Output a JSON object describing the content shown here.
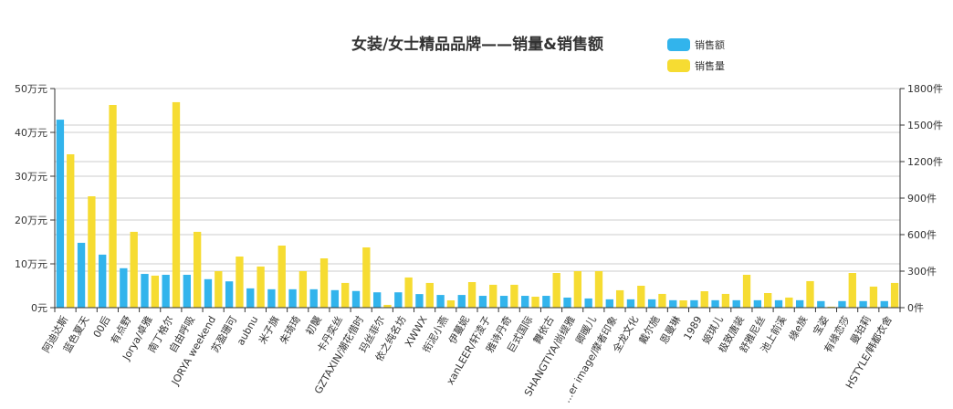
{
  "chart_data": {
    "type": "bar",
    "title": "女装/女士精品品牌——销量&销售额",
    "legend_position": "top-right",
    "grid": true,
    "colors": {
      "sales_amount": "#32b4ec",
      "sales_volume": "#f6dc32",
      "grid": "#cccccc",
      "axis": "#333333",
      "text": "#333333"
    },
    "categories": [
      "阿迪达斯",
      "蓝色夏天",
      "00后",
      "有点野",
      "Jorya/卓雅",
      "南丁格尔",
      "自由呼吸",
      "JORYA weekend",
      "苏盈珊可",
      "aubnu",
      "米子旗",
      "朱琦琦",
      "初襲",
      "卡丹奕丝",
      "GZTAXIN/潮花借时",
      "玛丝菲尔",
      "依之纯名坊",
      "XWWX",
      "衔泥小燕",
      "伊蔓妮",
      "xanLEER/轩凌子",
      "雅诗丹奇",
      "巨式国际",
      "舞依古",
      "SHANGTIYA/尚缇雅",
      "卿暖儿",
      "...er image/摩者印象",
      "全龙文化",
      "戴尔施",
      "恩曼琳",
      "1989",
      "姬琪儿",
      "极致唐装",
      "舒雅尼丝",
      "池上前溪",
      "缘e族",
      "宝姿",
      "有缘恋莎",
      "曼珀莉",
      "HSTYLE/韩都衣舍"
    ],
    "series": [
      {
        "name": "销售额",
        "axis": "left",
        "unit": "万元",
        "values": [
          42.9,
          14.8,
          12.1,
          9.0,
          7.7,
          7.5,
          7.5,
          6.5,
          6.0,
          4.4,
          4.2,
          4.2,
          4.2,
          4.0,
          3.8,
          3.5,
          3.5,
          3.1,
          2.9,
          2.9,
          2.7,
          2.7,
          2.7,
          2.7,
          2.3,
          2.1,
          1.9,
          1.9,
          1.9,
          1.7,
          1.7,
          1.7,
          1.7,
          1.7,
          1.7,
          1.7,
          1.5,
          1.5,
          1.5,
          1.5
        ]
      },
      {
        "name": "销售量",
        "axis": "right",
        "unit": "件",
        "values": [
          1260,
          915,
          1665,
          623,
          263,
          1688,
          623,
          300,
          420,
          338,
          510,
          300,
          405,
          203,
          495,
          23,
          248,
          203,
          60,
          210,
          188,
          188,
          90,
          285,
          300,
          300,
          143,
          180,
          113,
          60,
          135,
          113,
          270,
          120,
          83,
          218,
          8,
          285,
          173,
          203
        ]
      }
    ],
    "y_left": {
      "min": 0,
      "max": 50,
      "ticks": [
        "0元",
        "10万元",
        "20万元",
        "30万元",
        "40万元",
        "50万元"
      ]
    },
    "y_right": {
      "min": 0,
      "max": 1800,
      "ticks": [
        "0件",
        "300件",
        "600件",
        "900件",
        "1200件",
        "1500件",
        "1800件"
      ]
    },
    "xlabel": "",
    "ylabel": ""
  }
}
